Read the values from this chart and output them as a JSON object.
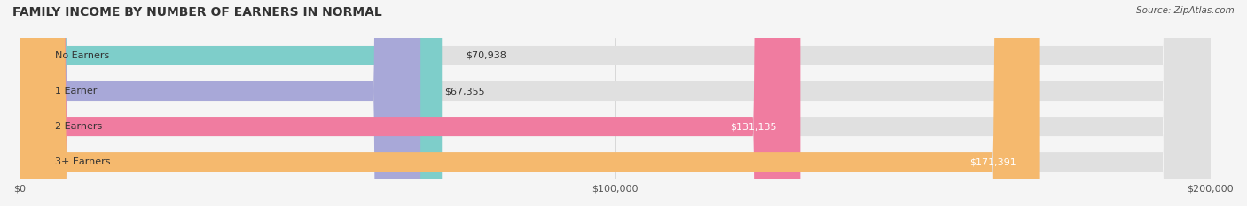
{
  "title": "FAMILY INCOME BY NUMBER OF EARNERS IN NORMAL",
  "source": "Source: ZipAtlas.com",
  "categories": [
    "No Earners",
    "1 Earner",
    "2 Earners",
    "3+ Earners"
  ],
  "values": [
    70938,
    67355,
    131135,
    171391
  ],
  "bar_colors": [
    "#7ececa",
    "#a8a8d8",
    "#f07ca0",
    "#f5b96e"
  ],
  "label_colors": [
    "#333333",
    "#333333",
    "#ffffff",
    "#ffffff"
  ],
  "background_color": "#f0f0f0",
  "bar_bg_color": "#e8e8e8",
  "xlim": [
    0,
    200000
  ],
  "xticks": [
    0,
    100000,
    200000
  ],
  "xtick_labels": [
    "$0",
    "$100,000",
    "$200,000"
  ],
  "figsize": [
    14.06,
    2.33
  ],
  "dpi": 100
}
